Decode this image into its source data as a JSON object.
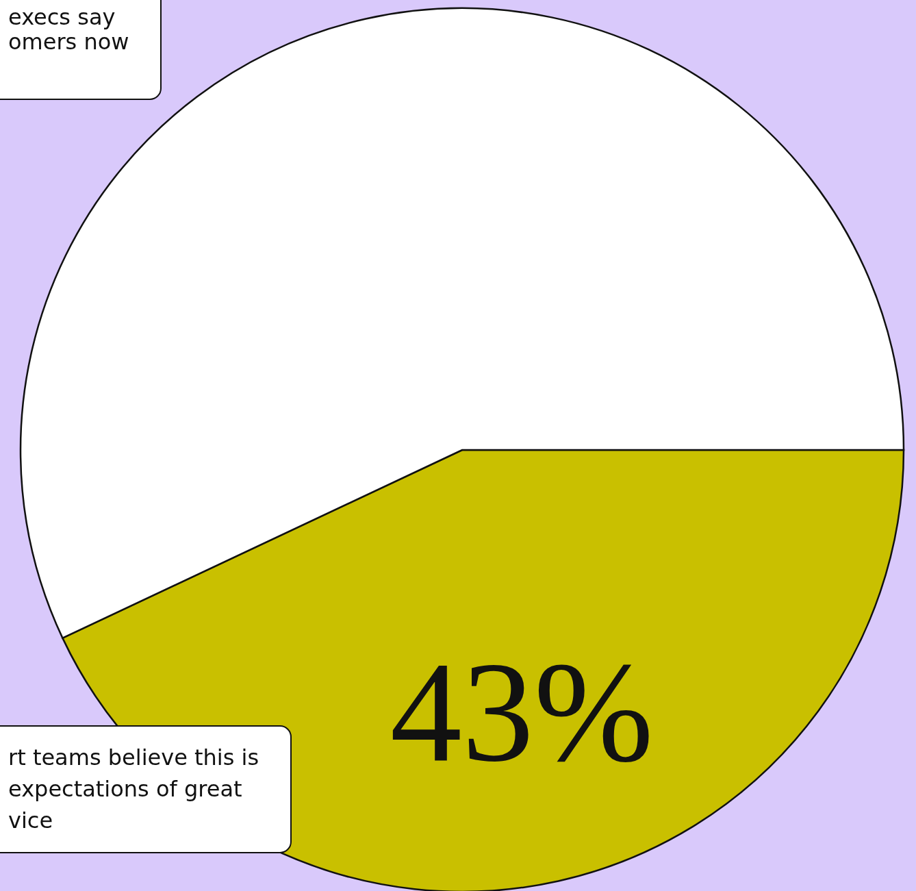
{
  "chart_data": {
    "type": "pie",
    "categories": [
      null,
      null
    ],
    "values": [
      43,
      57
    ],
    "colors": [
      "#c9c000",
      "#ffffff"
    ],
    "value_labels": [
      "43%",
      null
    ],
    "annotations": [
      "execs say\nomers now",
      "rt teams believe this is\nexpectations of great\nvice"
    ]
  }
}
